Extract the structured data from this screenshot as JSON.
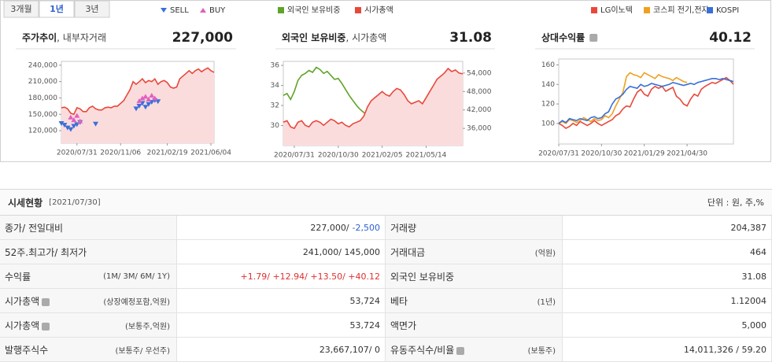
{
  "tabs": {
    "items": [
      "3개월",
      "1년",
      "3년"
    ],
    "active": 1
  },
  "chart_data": [
    {
      "type": "line",
      "title": "주가추이",
      "subtitle": ", 내부자거래",
      "headline": "227,000",
      "series": [
        {
          "color": "#e8483a",
          "area": true,
          "values": [
            162000,
            163000,
            160000,
            152000,
            150000,
            162000,
            160000,
            155000,
            155000,
            162000,
            165000,
            160000,
            158000,
            158000,
            162000,
            163000,
            162000,
            165000,
            165000,
            170000,
            175000,
            185000,
            195000,
            210000,
            205000,
            210000,
            215000,
            208000,
            212000,
            210000,
            215000,
            205000,
            210000,
            212000,
            208000,
            200000,
            198000,
            200000,
            215000,
            220000,
            225000,
            230000,
            225000,
            230000,
            233000,
            228000,
            232000,
            235000,
            230000,
            227000
          ]
        }
      ],
      "markers": [
        {
          "name": "SELL",
          "color": "#3a6fd8",
          "shape": "down",
          "x": [
            0,
            1,
            2,
            3,
            4,
            5,
            6,
            11,
            24,
            25,
            26,
            27,
            28,
            29,
            30,
            31
          ],
          "y": [
            133000,
            130000,
            125000,
            122000,
            128000,
            131000,
            135000,
            132000,
            160000,
            165000,
            170000,
            163000,
            168000,
            172000,
            175000,
            173000
          ]
        },
        {
          "name": "BUY",
          "color": "#e060c0",
          "shape": "up",
          "x": [
            3,
            4,
            5,
            6,
            25,
            26,
            27,
            28,
            29,
            30
          ],
          "y": [
            145000,
            140000,
            148000,
            138000,
            175000,
            180000,
            183000,
            178000,
            185000,
            180000
          ]
        }
      ],
      "xlim": [
        0,
        49
      ],
      "xticks": [
        {
          "value": 5,
          "label": "2020/07/31"
        },
        {
          "value": 19,
          "label": "2020/11/06"
        },
        {
          "value": 34,
          "label": "2021/02/19"
        },
        {
          "value": 48,
          "label": "2021/06/04"
        }
      ],
      "ylim": [
        97000,
        247000
      ],
      "yticks": [
        {
          "value": 120000,
          "label": "120,000"
        },
        {
          "value": 150000,
          "label": "150,000"
        },
        {
          "value": 180000,
          "label": "180,000"
        },
        {
          "value": 210000,
          "label": "210,000"
        },
        {
          "value": 240000,
          "label": "240,000"
        }
      ]
    },
    {
      "type": "line",
      "title": "외국인 보유비중",
      "subtitle": ", 시가총액",
      "headline": "31.08",
      "series": [
        {
          "name": "외국인 보유비중",
          "color": "#5ea32a",
          "values": [
            33,
            33.2,
            32.6,
            33.4,
            34.5,
            35.0,
            35.2,
            35.5,
            35.3,
            35.8,
            35.6,
            35.2,
            35.4,
            35.0,
            34.6,
            34.7,
            34.2,
            33.6,
            33.0,
            32.5,
            32.0,
            31.6,
            31.3,
            31.0,
            30.9,
            30.7,
            30.6,
            30.5,
            30.4,
            30.6,
            30.5,
            30.4,
            30.5,
            30.2,
            30.0,
            29.8,
            29.7,
            29.6,
            29.7,
            29.8,
            30.2,
            30.8,
            31.0,
            31.3,
            31.2,
            31.4,
            31.2,
            31.3,
            31.1,
            31.08
          ]
        },
        {
          "name": "시가총액",
          "color": "#e8483a",
          "axis": "y2",
          "area": true,
          "values": [
            38000,
            38500,
            36500,
            36000,
            38000,
            38500,
            37000,
            36500,
            38000,
            38500,
            38000,
            37000,
            38000,
            39000,
            38500,
            37500,
            38000,
            37000,
            36500,
            37500,
            38000,
            38500,
            40000,
            43000,
            45000,
            46000,
            47000,
            48000,
            47000,
            46500,
            48000,
            49000,
            48500,
            47000,
            45000,
            44000,
            44500,
            45000,
            44000,
            46000,
            48000,
            50000,
            52000,
            53000,
            54000,
            55500,
            54500,
            55000,
            54000,
            53724
          ]
        }
      ],
      "xlim": [
        0,
        49
      ],
      "xticks": [
        {
          "value": 3,
          "label": "2020/07/31"
        },
        {
          "value": 15,
          "label": "2020/10/30"
        },
        {
          "value": 27,
          "label": "2021/02/05"
        },
        {
          "value": 39,
          "label": "2021/05/14"
        }
      ],
      "ylim": [
        28,
        36.4
      ],
      "yticks": [
        30,
        32,
        34,
        36
      ],
      "y2lim": [
        30400,
        57800
      ],
      "y2ticks": [
        {
          "value": 36000,
          "label": "36,000"
        },
        {
          "value": 42000,
          "label": "42,000"
        },
        {
          "value": 48000,
          "label": "48,000"
        },
        {
          "value": 54000,
          "label": "54,000"
        }
      ]
    },
    {
      "type": "line",
      "title": "상대수익률",
      "headline": "40.12",
      "title_help": true,
      "series": [
        {
          "name": "LG이노텍",
          "color": "#e8483a",
          "values": [
            100,
            98,
            95,
            97,
            100,
            98,
            102,
            100,
            98,
            100,
            103,
            100,
            98,
            100,
            102,
            104,
            108,
            110,
            115,
            118,
            117,
            125,
            132,
            135,
            130,
            128,
            135,
            138,
            136,
            138,
            133,
            135,
            137,
            128,
            125,
            120,
            118,
            125,
            130,
            128,
            135,
            138,
            140,
            142,
            141,
            143,
            145,
            147,
            144,
            140.12
          ]
        },
        {
          "name": "코스피 전기,전자",
          "color": "#f0a020",
          "values": [
            100,
            102,
            100,
            104,
            103,
            101,
            103,
            106,
            104,
            102,
            105,
            103,
            104,
            108,
            106,
            110,
            118,
            125,
            132,
            148,
            152,
            150,
            149,
            147,
            152,
            150,
            148,
            146,
            150,
            148,
            147,
            146,
            144,
            147,
            145,
            143,
            142,
            null,
            null,
            null,
            null,
            null,
            null,
            null,
            null,
            null,
            null,
            null,
            null,
            null
          ]
        },
        {
          "name": "KOSPI",
          "color": "#3a6fd8",
          "values": [
            100,
            103,
            101,
            105,
            104,
            103,
            105,
            104,
            103,
            106,
            107,
            105,
            106,
            110,
            112,
            120,
            125,
            127,
            130,
            135,
            138,
            137,
            136,
            140,
            138,
            139,
            141,
            140,
            139,
            138,
            139,
            140,
            142,
            141,
            140,
            139,
            140,
            141,
            140,
            142,
            143,
            144,
            145,
            146,
            146,
            145,
            146,
            145,
            144,
            143
          ]
        }
      ],
      "xlim": [
        0,
        49
      ],
      "xticks": [
        {
          "value": 0,
          "label": "2020/07/31"
        },
        {
          "value": 12,
          "label": "2020/10/30"
        },
        {
          "value": 24,
          "label": "2021/01/29"
        },
        {
          "value": 36,
          "label": "2021/04/30"
        }
      ],
      "ylim": [
        79,
        166
      ],
      "yticks": [
        100,
        120,
        140,
        160
      ]
    }
  ],
  "table": {
    "title": "시세현황",
    "date": "[2021/07/30]",
    "unit": "단위 : 원, 주,%",
    "rows": [
      {
        "left": {
          "label": "종가/ 전일대비",
          "value": "227,000/",
          "change": "-2,500",
          "change_color": "#2f5fd0"
        },
        "right": {
          "label": "거래량",
          "value": "204,387"
        }
      },
      {
        "left": {
          "label": "52주.최고가/ 최저가",
          "value": "241,000/ 145,000"
        },
        "right": {
          "label": "거래대금",
          "sub": "(억원)",
          "value": "464"
        }
      },
      {
        "left": {
          "label": "수익률",
          "sub": "(1M/ 3M/ 6M/ 1Y)",
          "value": "+1.79/ +12.94/ +13.50/ +40.12",
          "value_color": "#e03030"
        },
        "right": {
          "label": "외국인 보유비중",
          "value": "31.08"
        }
      },
      {
        "left": {
          "label": "시가총액",
          "help": true,
          "sub": "(상장예정포함,억원)",
          "value": "53,724"
        },
        "right": {
          "label": "베타",
          "sub": "(1년)",
          "value": "1.12004"
        }
      },
      {
        "left": {
          "label": "시가총액",
          "help": true,
          "sub": "(보통주,억원)",
          "value": "53,724"
        },
        "right": {
          "label": "액면가",
          "value": "5,000"
        }
      },
      {
        "left": {
          "label": "발행주식수",
          "sub": "(보통주/ 우선주)",
          "value": "23,667,107/ 0"
        },
        "right": {
          "label": "유동주식수/비율",
          "help": true,
          "sub": "(보통주)",
          "value": "14,011,326 / 59.20"
        }
      }
    ]
  }
}
